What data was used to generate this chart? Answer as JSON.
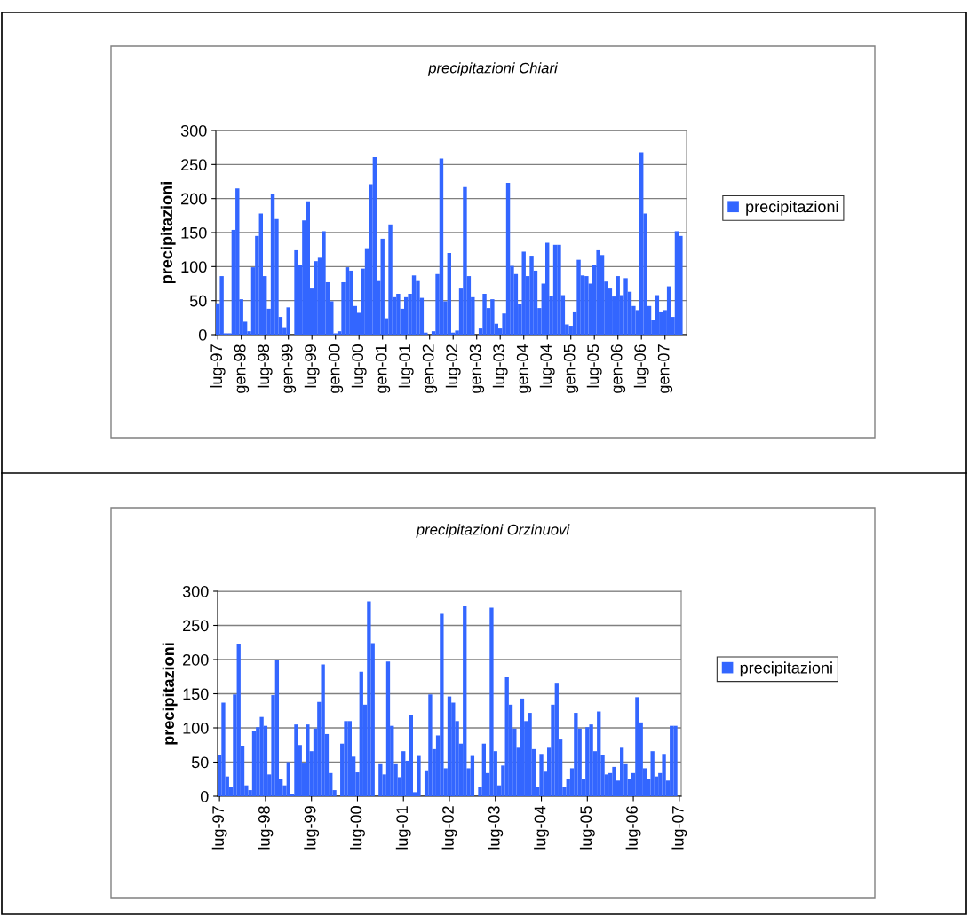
{
  "chart_data": [
    {
      "type": "bar",
      "title": "precipitazioni Chiari",
      "ylabel": "precipitazioni",
      "categories": [
        "lug-97",
        null,
        null,
        null,
        null,
        null,
        "gen-98",
        null,
        null,
        null,
        null,
        null,
        "lug-98",
        null,
        null,
        null,
        null,
        null,
        "gen-99",
        null,
        null,
        null,
        null,
        null,
        "lug-99",
        null,
        null,
        null,
        null,
        null,
        "gen-00",
        null,
        null,
        null,
        null,
        null,
        "lug-00",
        null,
        null,
        null,
        null,
        null,
        "gen-01",
        null,
        null,
        null,
        null,
        null,
        "lug-01",
        null,
        null,
        null,
        null,
        null,
        "gen-02",
        null,
        null,
        null,
        null,
        null,
        "lug-02",
        null,
        null,
        null,
        null,
        null,
        "gen-03",
        null,
        null,
        null,
        null,
        null,
        "lug-03",
        null,
        null,
        null,
        null,
        null,
        "gen-04",
        null,
        null,
        null,
        null,
        null,
        "lug-04",
        null,
        null,
        null,
        null,
        null,
        "gen-05",
        null,
        null,
        null,
        null,
        null,
        "lug-05",
        null,
        null,
        null,
        null,
        null,
        "gen-06",
        null,
        null,
        null,
        null,
        null,
        "lug-06",
        null,
        null,
        null,
        null,
        null,
        "gen-07",
        null,
        null,
        null,
        null,
        null
      ],
      "series": [
        {
          "name": "precipitazioni",
          "color": "#3366ff",
          "values": [
            46,
            86,
            2,
            2,
            154,
            215,
            52,
            19,
            5,
            99,
            145,
            178,
            86,
            38,
            207,
            170,
            26,
            11,
            40,
            0,
            124,
            103,
            168,
            196,
            69,
            108,
            113,
            152,
            77,
            49,
            2,
            5,
            77,
            99,
            94,
            42,
            32,
            97,
            127,
            221,
            261,
            80,
            141,
            24,
            162,
            55,
            60,
            38,
            55,
            60,
            87,
            80,
            54,
            3,
            0,
            5,
            89,
            259,
            49,
            120,
            3,
            6,
            69,
            217,
            86,
            55,
            0,
            9,
            60,
            39,
            52,
            16,
            9,
            31,
            223,
            101,
            89,
            45,
            122,
            86,
            116,
            94,
            39,
            75,
            135,
            57,
            132,
            132,
            58,
            15,
            13,
            34,
            110,
            87,
            86,
            75,
            103,
            124,
            117,
            78,
            69,
            56,
            86,
            58,
            83,
            63,
            42,
            36,
            268,
            178,
            42,
            22,
            58,
            34,
            36,
            71,
            26,
            152,
            145,
            null
          ]
        }
      ],
      "ylim": [
        0,
        300
      ],
      "yticks": [
        0,
        50,
        100,
        150,
        200,
        250,
        300
      ],
      "grid": "y",
      "legend": "right"
    },
    {
      "type": "bar",
      "title": "precipitazioni Orzinuovi",
      "ylabel": "precipitazioni",
      "categories": [
        "lug-97",
        null,
        null,
        null,
        null,
        null,
        null,
        null,
        null,
        null,
        null,
        null,
        "lug-98",
        null,
        null,
        null,
        null,
        null,
        null,
        null,
        null,
        null,
        null,
        null,
        "lug-99",
        null,
        null,
        null,
        null,
        null,
        null,
        null,
        null,
        null,
        null,
        null,
        "lug-00",
        null,
        null,
        null,
        null,
        null,
        null,
        null,
        null,
        null,
        null,
        null,
        "lug-01",
        null,
        null,
        null,
        null,
        null,
        null,
        null,
        null,
        null,
        null,
        null,
        "lug-02",
        null,
        null,
        null,
        null,
        null,
        null,
        null,
        null,
        null,
        null,
        null,
        "lug-03",
        null,
        null,
        null,
        null,
        null,
        null,
        null,
        null,
        null,
        null,
        null,
        "lug-04",
        null,
        null,
        null,
        null,
        null,
        null,
        null,
        null,
        null,
        null,
        null,
        "lug-05",
        null,
        null,
        null,
        null,
        null,
        null,
        null,
        null,
        null,
        null,
        null,
        "lug-06",
        null,
        null,
        null,
        null,
        null,
        null,
        null,
        null,
        null,
        null,
        null,
        "lug-07"
      ],
      "series": [
        {
          "name": "precipitazioni",
          "color": "#3366ff",
          "values": [
            61,
            137,
            29,
            13,
            149,
            223,
            74,
            16,
            9,
            96,
            101,
            116,
            103,
            32,
            148,
            199,
            25,
            16,
            50,
            3,
            105,
            75,
            48,
            105,
            66,
            99,
            138,
            193,
            91,
            34,
            9,
            0,
            77,
            110,
            110,
            58,
            35,
            182,
            134,
            285,
            224,
            0,
            47,
            32,
            197,
            103,
            47,
            28,
            66,
            52,
            119,
            6,
            59,
            0,
            38,
            149,
            69,
            89,
            267,
            41,
            146,
            137,
            110,
            77,
            278,
            41,
            59,
            0,
            13,
            77,
            34,
            276,
            66,
            16,
            45,
            174,
            134,
            99,
            71,
            143,
            110,
            122,
            69,
            13,
            62,
            36,
            71,
            134,
            166,
            83,
            13,
            25,
            41,
            122,
            99,
            25,
            101,
            105,
            66,
            124,
            61,
            32,
            34,
            43,
            23,
            71,
            47,
            25,
            34,
            145,
            108,
            41,
            25,
            66,
            29,
            34,
            62,
            23,
            103,
            103,
            null
          ]
        }
      ],
      "ylim": [
        0,
        300
      ],
      "yticks": [
        0,
        50,
        100,
        150,
        200,
        250,
        300
      ],
      "grid": "y",
      "legend": "right"
    }
  ]
}
